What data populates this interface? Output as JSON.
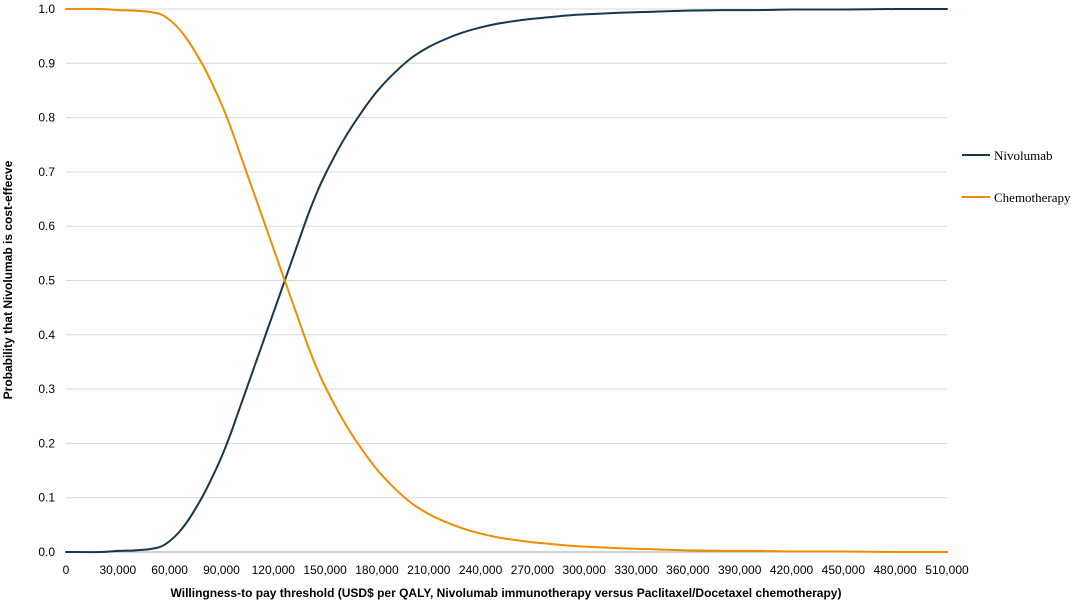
{
  "chart_data": {
    "type": "line",
    "xlabel": "Willingness-to pay threshold (USD$ per QALY, Nivolumab immunotherapy versus Paclitaxel/Docetaxel chemotherapy)",
    "ylabel": "Probability that Nivolumab is cost-effecve",
    "xlim": [
      0,
      510000
    ],
    "ylim": [
      0,
      1.0
    ],
    "x_ticks": [
      "0",
      "30,000",
      "60,000",
      "90,000",
      "120,000",
      "150,000",
      "180,000",
      "210,000",
      "240,000",
      "270,000",
      "300,000",
      "330,000",
      "360,000",
      "390,000",
      "420,000",
      "450,000",
      "480,000",
      "510,000"
    ],
    "y_ticks": [
      "0.0",
      "0.1",
      "0.2",
      "0.3",
      "0.4",
      "0.5",
      "0.6",
      "0.7",
      "0.8",
      "0.9",
      "1.0"
    ],
    "grid": "horizontal",
    "legend_position": "right",
    "series": [
      {
        "name": "Nivolumab",
        "color": "#17374f",
        "x": [
          0,
          20000,
          30000,
          40000,
          48000,
          55000,
          60000,
          65000,
          70000,
          75000,
          80000,
          85000,
          90000,
          95000,
          100000,
          105000,
          110000,
          115000,
          120000,
          125000,
          130000,
          135000,
          140000,
          145000,
          150000,
          160000,
          170000,
          180000,
          190000,
          200000,
          210000,
          220000,
          230000,
          240000,
          250000,
          260000,
          270000,
          280000,
          290000,
          300000,
          320000,
          340000,
          360000,
          380000,
          400000,
          420000,
          450000,
          480000,
          510000
        ],
        "y": [
          0.0,
          0.0,
          0.002,
          0.003,
          0.005,
          0.01,
          0.02,
          0.035,
          0.055,
          0.08,
          0.108,
          0.14,
          0.175,
          0.215,
          0.26,
          0.305,
          0.35,
          0.395,
          0.44,
          0.485,
          0.53,
          0.575,
          0.62,
          0.66,
          0.695,
          0.755,
          0.805,
          0.848,
          0.882,
          0.91,
          0.93,
          0.945,
          0.957,
          0.966,
          0.973,
          0.978,
          0.982,
          0.985,
          0.988,
          0.99,
          0.993,
          0.995,
          0.997,
          0.998,
          0.998,
          0.999,
          0.999,
          1.0,
          1.0
        ]
      },
      {
        "name": "Chemotherapy",
        "color": "#f08c00",
        "x": [
          0,
          20000,
          30000,
          40000,
          48000,
          55000,
          60000,
          65000,
          70000,
          75000,
          80000,
          85000,
          90000,
          95000,
          100000,
          105000,
          110000,
          115000,
          120000,
          125000,
          130000,
          135000,
          140000,
          145000,
          150000,
          160000,
          170000,
          180000,
          190000,
          200000,
          210000,
          220000,
          230000,
          240000,
          250000,
          260000,
          270000,
          280000,
          290000,
          300000,
          320000,
          340000,
          360000,
          380000,
          400000,
          420000,
          450000,
          480000,
          510000
        ],
        "y": [
          1.0,
          1.0,
          0.998,
          0.997,
          0.995,
          0.99,
          0.98,
          0.965,
          0.945,
          0.92,
          0.892,
          0.86,
          0.825,
          0.785,
          0.74,
          0.695,
          0.65,
          0.605,
          0.56,
          0.515,
          0.47,
          0.425,
          0.38,
          0.34,
          0.305,
          0.245,
          0.195,
          0.152,
          0.118,
          0.09,
          0.07,
          0.055,
          0.043,
          0.034,
          0.027,
          0.022,
          0.018,
          0.015,
          0.012,
          0.01,
          0.007,
          0.005,
          0.003,
          0.002,
          0.002,
          0.001,
          0.001,
          0.0,
          0.0
        ]
      }
    ]
  }
}
